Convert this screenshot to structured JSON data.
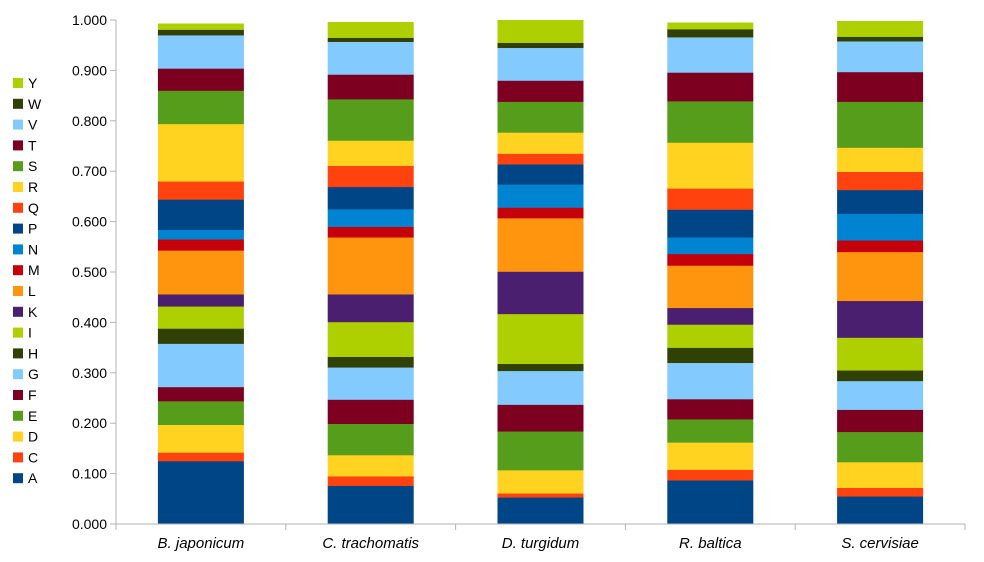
{
  "chart_data": {
    "type": "bar",
    "stacked": true,
    "categories": [
      "B. japonicum",
      "C. trachomatis",
      "D. turgidum",
      "R. baltica",
      "S. cervisiae"
    ],
    "ylim": [
      0,
      1
    ],
    "yticks": [
      "0.000",
      "0.100",
      "0.200",
      "0.300",
      "0.400",
      "0.500",
      "0.600",
      "0.700",
      "0.800",
      "0.900",
      "1.000"
    ],
    "legend_position": "left",
    "grid": false,
    "series": [
      {
        "name": "A",
        "color": "#004586",
        "values": [
          0.125,
          0.076,
          0.053,
          0.087,
          0.055
        ]
      },
      {
        "name": "C",
        "color": "#ff420e",
        "values": [
          0.017,
          0.019,
          0.008,
          0.021,
          0.017
        ]
      },
      {
        "name": "D",
        "color": "#ffd320",
        "values": [
          0.055,
          0.042,
          0.046,
          0.054,
          0.051
        ]
      },
      {
        "name": "E",
        "color": "#579d1c",
        "values": [
          0.047,
          0.062,
          0.077,
          0.046,
          0.06
        ]
      },
      {
        "name": "F",
        "color": "#7e0021",
        "values": [
          0.028,
          0.048,
          0.053,
          0.04,
          0.044
        ]
      },
      {
        "name": "G",
        "color": "#83caff",
        "values": [
          0.086,
          0.064,
          0.067,
          0.072,
          0.057
        ]
      },
      {
        "name": "H",
        "color": "#314004",
        "values": [
          0.03,
          0.021,
          0.014,
          0.03,
          0.021
        ]
      },
      {
        "name": "I",
        "color": "#aecf00",
        "values": [
          0.044,
          0.069,
          0.099,
          0.046,
          0.065
        ]
      },
      {
        "name": "K",
        "color": "#4b1f6f",
        "values": [
          0.024,
          0.055,
          0.084,
          0.033,
          0.073
        ]
      },
      {
        "name": "L",
        "color": "#ff950e",
        "values": [
          0.087,
          0.113,
          0.106,
          0.084,
          0.097
        ]
      },
      {
        "name": "M",
        "color": "#c5000b",
        "values": [
          0.022,
          0.021,
          0.021,
          0.023,
          0.023
        ]
      },
      {
        "name": "N",
        "color": "#0084d1",
        "values": [
          0.019,
          0.035,
          0.046,
          0.033,
          0.053
        ]
      },
      {
        "name": "P",
        "color": "#004586",
        "values": [
          0.06,
          0.044,
          0.04,
          0.055,
          0.047
        ]
      },
      {
        "name": "Q",
        "color": "#ff420e",
        "values": [
          0.036,
          0.042,
          0.021,
          0.042,
          0.036
        ]
      },
      {
        "name": "R",
        "color": "#ffd320",
        "values": [
          0.114,
          0.05,
          0.042,
          0.091,
          0.048
        ]
      },
      {
        "name": "S",
        "color": "#579d1c",
        "values": [
          0.066,
          0.082,
          0.061,
          0.082,
          0.091
        ]
      },
      {
        "name": "T",
        "color": "#7e0021",
        "values": [
          0.044,
          0.049,
          0.042,
          0.057,
          0.059
        ]
      },
      {
        "name": "V",
        "color": "#83caff",
        "values": [
          0.066,
          0.065,
          0.065,
          0.07,
          0.061
        ]
      },
      {
        "name": "W",
        "color": "#314004",
        "values": [
          0.011,
          0.008,
          0.01,
          0.016,
          0.009
        ]
      },
      {
        "name": "Y",
        "color": "#aecf00",
        "values": [
          0.012,
          0.031,
          0.045,
          0.013,
          0.031
        ]
      }
    ]
  }
}
